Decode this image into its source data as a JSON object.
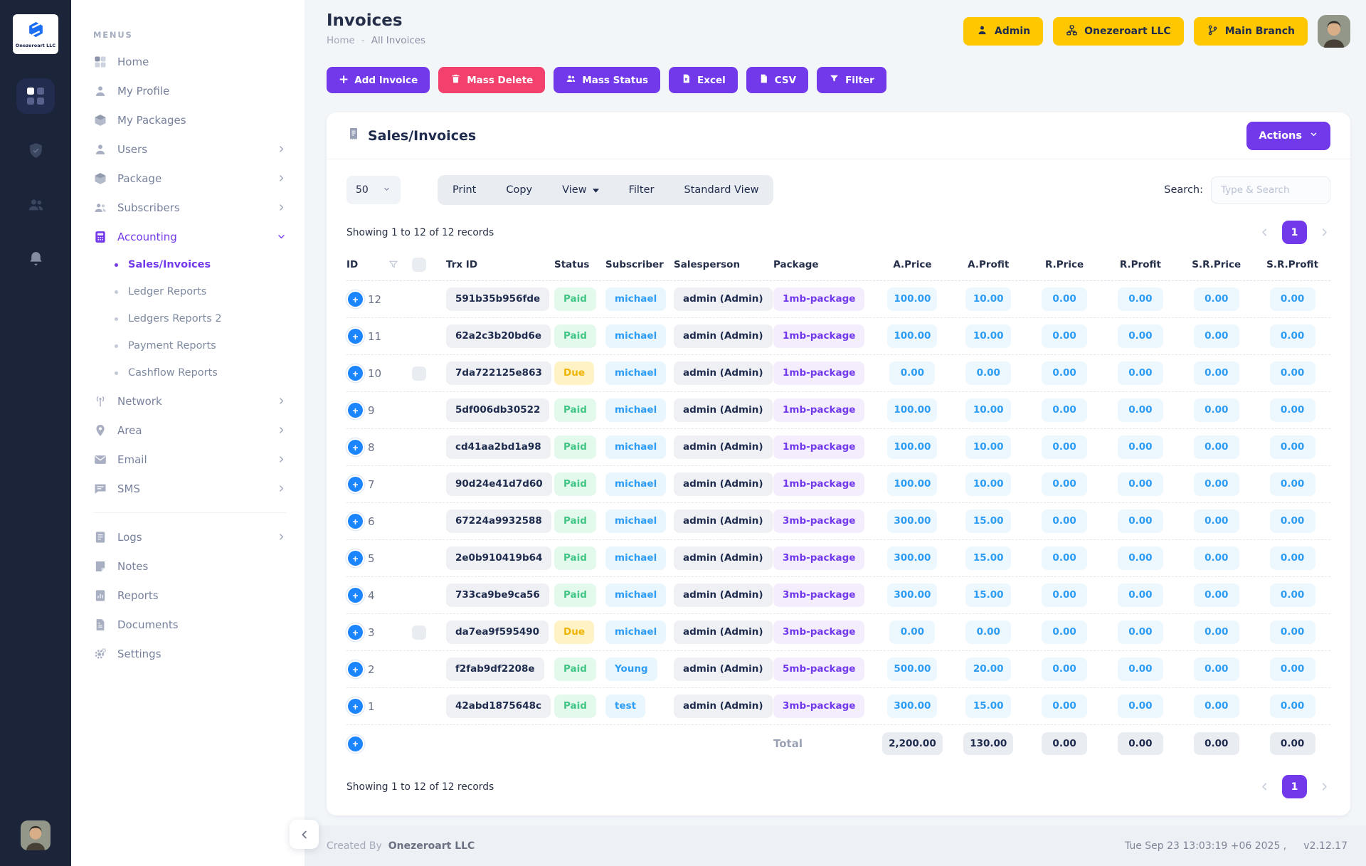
{
  "brand": {
    "name": "Onezeroart LLC"
  },
  "rail": {
    "icons": [
      {
        "name": "dashboard-grid",
        "active": true
      },
      {
        "name": "shield-check",
        "active": false
      },
      {
        "name": "community-users",
        "active": false
      },
      {
        "name": "notifications-bell",
        "active": false
      }
    ]
  },
  "sidebar": {
    "section_label": "MENUS",
    "items": [
      {
        "icon": "grid",
        "label": "Home",
        "chevron": false
      },
      {
        "icon": "user",
        "label": "My Profile",
        "chevron": false
      },
      {
        "icon": "box",
        "label": "My Packages",
        "chevron": false
      },
      {
        "icon": "user",
        "label": "Users",
        "chevron": true
      },
      {
        "icon": "box",
        "label": "Package",
        "chevron": true
      },
      {
        "icon": "users",
        "label": "Subscribers",
        "chevron": true
      },
      {
        "icon": "calculator",
        "label": "Accounting",
        "chevron": true,
        "expanded": true,
        "active": true,
        "children": [
          {
            "label": "Sales/Invoices",
            "active": true
          },
          {
            "label": "Ledger Reports",
            "active": false
          },
          {
            "label": "Ledgers Reports 2",
            "active": false
          },
          {
            "label": "Payment Reports",
            "active": false
          },
          {
            "label": "Cashflow Reports",
            "active": false
          }
        ]
      },
      {
        "icon": "network",
        "label": "Network",
        "chevron": true
      },
      {
        "icon": "pin",
        "label": "Area",
        "chevron": true
      },
      {
        "icon": "mail",
        "label": "Email",
        "chevron": true
      },
      {
        "icon": "sms",
        "label": "SMS",
        "chevron": true
      },
      {
        "divider": true
      },
      {
        "icon": "logs",
        "label": "Logs",
        "chevron": true
      },
      {
        "icon": "note",
        "label": "Notes",
        "chevron": false
      },
      {
        "icon": "report",
        "label": "Reports",
        "chevron": false
      },
      {
        "icon": "doc",
        "label": "Documents",
        "chevron": false
      },
      {
        "icon": "gear",
        "label": "Settings",
        "chevron": false
      }
    ]
  },
  "header": {
    "title": "Invoices",
    "breadcrumb": {
      "home": "Home",
      "separator": "-",
      "current": "All Invoices"
    },
    "user_menu": {
      "role": "Admin",
      "company": "Onezeroart LLC",
      "branch": "Main Branch"
    }
  },
  "toolbar": {
    "add_invoice": "Add Invoice",
    "mass_delete": "Mass Delete",
    "mass_status": "Mass Status",
    "excel": "Excel",
    "csv": "CSV",
    "filter": "Filter"
  },
  "card": {
    "title": "Sales/Invoices",
    "actions_label": "Actions",
    "controls": {
      "page_size": "50",
      "print": "Print",
      "copy": "Copy",
      "view": "View",
      "filter": "Filter",
      "standard_view": "Standard View"
    },
    "search": {
      "label": "Search:",
      "placeholder": "Type & Search"
    },
    "showing_text": "Showing 1 to 12 of 12 records",
    "pagination": {
      "page": "1"
    },
    "table": {
      "columns": {
        "id": "ID",
        "trx": "Trx ID",
        "status": "Status",
        "subscriber": "Subscriber",
        "salesperson": "Salesperson",
        "package": "Package",
        "a_price": "A.Price",
        "a_profit": "A.Profit",
        "r_price": "R.Price",
        "r_profit": "R.Profit",
        "sr_price": "S.R.Price",
        "sr_profit": "S.R.Profit"
      },
      "rows": [
        {
          "id": "12",
          "trx": "591b35b956fde",
          "status": "Paid",
          "subscriber": "michael",
          "salesperson": "admin (Admin)",
          "package": "1mb-package",
          "a_price": "100.00",
          "a_profit": "10.00",
          "r_price": "0.00",
          "r_profit": "0.00",
          "sr_price": "0.00",
          "sr_profit": "0.00",
          "checkbox": false
        },
        {
          "id": "11",
          "trx": "62a2c3b20bd6e",
          "status": "Paid",
          "subscriber": "michael",
          "salesperson": "admin (Admin)",
          "package": "1mb-package",
          "a_price": "100.00",
          "a_profit": "10.00",
          "r_price": "0.00",
          "r_profit": "0.00",
          "sr_price": "0.00",
          "sr_profit": "0.00",
          "checkbox": false
        },
        {
          "id": "10",
          "trx": "7da722125e863",
          "status": "Due",
          "subscriber": "michael",
          "salesperson": "admin (Admin)",
          "package": "1mb-package",
          "a_price": "0.00",
          "a_profit": "0.00",
          "r_price": "0.00",
          "r_profit": "0.00",
          "sr_price": "0.00",
          "sr_profit": "0.00",
          "checkbox": true
        },
        {
          "id": "9",
          "trx": "5df006db30522",
          "status": "Paid",
          "subscriber": "michael",
          "salesperson": "admin (Admin)",
          "package": "1mb-package",
          "a_price": "100.00",
          "a_profit": "10.00",
          "r_price": "0.00",
          "r_profit": "0.00",
          "sr_price": "0.00",
          "sr_profit": "0.00",
          "checkbox": false
        },
        {
          "id": "8",
          "trx": "cd41aa2bd1a98",
          "status": "Paid",
          "subscriber": "michael",
          "salesperson": "admin (Admin)",
          "package": "1mb-package",
          "a_price": "100.00",
          "a_profit": "10.00",
          "r_price": "0.00",
          "r_profit": "0.00",
          "sr_price": "0.00",
          "sr_profit": "0.00",
          "checkbox": false
        },
        {
          "id": "7",
          "trx": "90d24e41d7d60",
          "status": "Paid",
          "subscriber": "michael",
          "salesperson": "admin (Admin)",
          "package": "1mb-package",
          "a_price": "100.00",
          "a_profit": "10.00",
          "r_price": "0.00",
          "r_profit": "0.00",
          "sr_price": "0.00",
          "sr_profit": "0.00",
          "checkbox": false
        },
        {
          "id": "6",
          "trx": "67224a9932588",
          "status": "Paid",
          "subscriber": "michael",
          "salesperson": "admin (Admin)",
          "package": "3mb-package",
          "a_price": "300.00",
          "a_profit": "15.00",
          "r_price": "0.00",
          "r_profit": "0.00",
          "sr_price": "0.00",
          "sr_profit": "0.00",
          "checkbox": false
        },
        {
          "id": "5",
          "trx": "2e0b910419b64",
          "status": "Paid",
          "subscriber": "michael",
          "salesperson": "admin (Admin)",
          "package": "3mb-package",
          "a_price": "300.00",
          "a_profit": "15.00",
          "r_price": "0.00",
          "r_profit": "0.00",
          "sr_price": "0.00",
          "sr_profit": "0.00",
          "checkbox": false
        },
        {
          "id": "4",
          "trx": "733ca9be9ca56",
          "status": "Paid",
          "subscriber": "michael",
          "salesperson": "admin (Admin)",
          "package": "3mb-package",
          "a_price": "300.00",
          "a_profit": "15.00",
          "r_price": "0.00",
          "r_profit": "0.00",
          "sr_price": "0.00",
          "sr_profit": "0.00",
          "checkbox": false
        },
        {
          "id": "3",
          "trx": "da7ea9f595490",
          "status": "Due",
          "subscriber": "michael",
          "salesperson": "admin (Admin)",
          "package": "3mb-package",
          "a_price": "0.00",
          "a_profit": "0.00",
          "r_price": "0.00",
          "r_profit": "0.00",
          "sr_price": "0.00",
          "sr_profit": "0.00",
          "checkbox": true
        },
        {
          "id": "2",
          "trx": "f2fab9df2208e",
          "status": "Paid",
          "subscriber": "Young",
          "salesperson": "admin (Admin)",
          "package": "5mb-package",
          "a_price": "500.00",
          "a_profit": "20.00",
          "r_price": "0.00",
          "r_profit": "0.00",
          "sr_price": "0.00",
          "sr_profit": "0.00",
          "checkbox": false
        },
        {
          "id": "1",
          "trx": "42abd1875648c",
          "status": "Paid",
          "subscriber": "test",
          "salesperson": "admin (Admin)",
          "package": "3mb-package",
          "a_price": "300.00",
          "a_profit": "15.00",
          "r_price": "0.00",
          "r_profit": "0.00",
          "sr_price": "0.00",
          "sr_profit": "0.00",
          "checkbox": false
        }
      ],
      "total": {
        "label": "Total",
        "a_price": "2,200.00",
        "a_profit": "130.00",
        "r_price": "0.00",
        "r_profit": "0.00",
        "sr_price": "0.00",
        "sr_profit": "0.00"
      }
    }
  },
  "footer": {
    "created_by_label": "Created By",
    "company": "Onezeroart LLC",
    "timestamp": "Tue Sep 23 13:03:19 +06 2025 ,",
    "version": "v2.12.17"
  },
  "colors": {
    "accent": "#7239ea",
    "danger": "#f1416c",
    "warning": "#ffc700",
    "success": "#43c586",
    "info": "#1b84ff",
    "rail_bg": "#1b2438",
    "page_bg": "#f2f6f9"
  }
}
